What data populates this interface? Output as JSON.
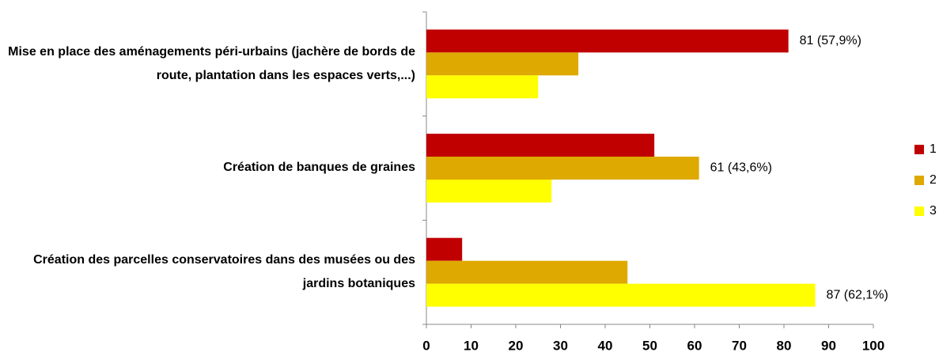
{
  "chart_data": {
    "type": "hbar",
    "categories": [
      "Mise en place des aménagements péri-urbains (jachère de bords de route, plantation dans les espaces verts,...)",
      "Création de banques de graines",
      "Création des parcelles conservatoires dans des musées ou des jardins botaniques"
    ],
    "series": [
      {
        "name": "1",
        "color": "#c00000",
        "values": [
          81,
          51,
          8
        ],
        "value_labels": [
          "81 (57,9%)",
          null,
          null
        ]
      },
      {
        "name": "2",
        "color": "#dea900",
        "values": [
          34,
          61,
          45
        ],
        "value_labels": [
          null,
          "61 (43,6%)",
          null
        ]
      },
      {
        "name": "3",
        "color": "#ffff00",
        "values": [
          25,
          28,
          87
        ],
        "value_labels": [
          null,
          null,
          "87 (62,1%)"
        ]
      }
    ],
    "xlim": [
      0,
      100
    ],
    "xticks": [
      0,
      10,
      20,
      30,
      40,
      50,
      60,
      70,
      80,
      90,
      100
    ],
    "legend": "right"
  }
}
